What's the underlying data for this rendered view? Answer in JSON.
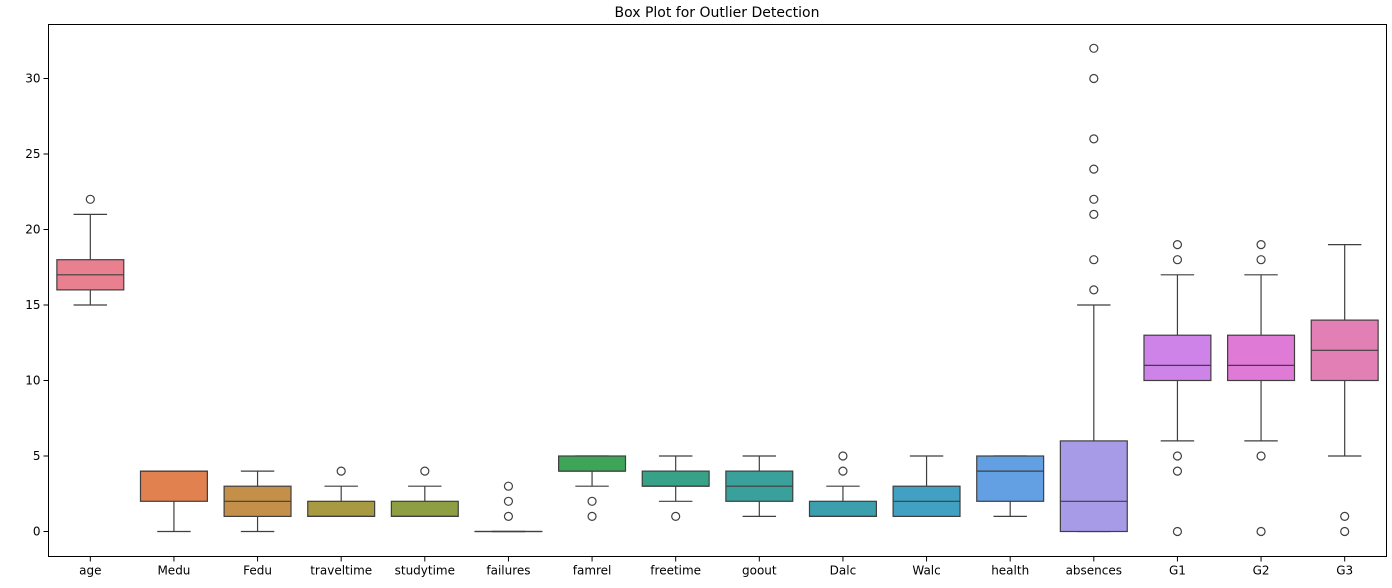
{
  "chart_data": {
    "type": "box",
    "title": "Box Plot for Outlier Detection",
    "xlabel": "",
    "ylabel": "",
    "ylim": [
      -1.5,
      33.8
    ],
    "yticks": [
      0,
      5,
      10,
      15,
      20,
      25,
      30
    ],
    "grid": false,
    "legend": "none",
    "categories": [
      "age",
      "Medu",
      "Fedu",
      "traveltime",
      "studytime",
      "failures",
      "famrel",
      "freetime",
      "goout",
      "Dalc",
      "Walc",
      "health",
      "absences",
      "G1",
      "G2",
      "G3"
    ],
    "boxes": [
      {
        "name": "age",
        "color": "#e8808f",
        "q1": 16,
        "median": 17,
        "q3": 18,
        "whislo": 15,
        "whishi": 21,
        "fliers": [
          22
        ]
      },
      {
        "name": "Medu",
        "color": "#e0814f",
        "q1": 2,
        "median": 4,
        "q3": 4,
        "whislo": 0,
        "whishi": 4,
        "fliers": []
      },
      {
        "name": "Fedu",
        "color": "#c49049",
        "q1": 1,
        "median": 2,
        "q3": 3,
        "whislo": 0,
        "whishi": 4,
        "fliers": []
      },
      {
        "name": "traveltime",
        "color": "#a79a42",
        "q1": 1,
        "median": 1,
        "q3": 2,
        "whislo": 1,
        "whishi": 3,
        "fliers": [
          4
        ]
      },
      {
        "name": "studytime",
        "color": "#8e9e42",
        "q1": 1,
        "median": 1,
        "q3": 2,
        "whislo": 1,
        "whishi": 3,
        "fliers": [
          4
        ]
      },
      {
        "name": "failures",
        "color": "#6aa443",
        "q1": 0,
        "median": 0,
        "q3": 0,
        "whislo": 0,
        "whishi": 0,
        "fliers": [
          1,
          2,
          3
        ]
      },
      {
        "name": "famrel",
        "color": "#3da458",
        "q1": 4,
        "median": 4,
        "q3": 5,
        "whislo": 3,
        "whishi": 5,
        "fliers": [
          1,
          2
        ]
      },
      {
        "name": "freetime",
        "color": "#38a288",
        "q1": 3,
        "median": 3,
        "q3": 4,
        "whislo": 2,
        "whishi": 5,
        "fliers": [
          1
        ]
      },
      {
        "name": "goout",
        "color": "#3aa09b",
        "q1": 2,
        "median": 3,
        "q3": 4,
        "whislo": 1,
        "whishi": 5,
        "fliers": []
      },
      {
        "name": "Dalc",
        "color": "#3c9fae",
        "q1": 1,
        "median": 1,
        "q3": 2,
        "whislo": 1,
        "whishi": 3,
        "fliers": [
          4,
          5
        ]
      },
      {
        "name": "Walc",
        "color": "#42a0c2",
        "q1": 1,
        "median": 2,
        "q3": 3,
        "whislo": 1,
        "whishi": 5,
        "fliers": []
      },
      {
        "name": "health",
        "color": "#62a0e3",
        "q1": 2,
        "median": 4,
        "q3": 5,
        "whislo": 1,
        "whishi": 5,
        "fliers": []
      },
      {
        "name": "absences",
        "color": "#a79be8",
        "q1": 0,
        "median": 2,
        "q3": 6,
        "whislo": 0,
        "whishi": 15,
        "fliers": [
          16,
          18,
          21,
          22,
          24,
          26,
          30,
          32
        ]
      },
      {
        "name": "G1",
        "color": "#cd83e8",
        "q1": 10,
        "median": 11,
        "q3": 13,
        "whislo": 6,
        "whishi": 17,
        "fliers": [
          0,
          4,
          5,
          18,
          19
        ]
      },
      {
        "name": "G2",
        "color": "#e07ad7",
        "q1": 10,
        "median": 11,
        "q3": 13,
        "whislo": 6,
        "whishi": 17,
        "fliers": [
          0,
          5,
          18,
          19
        ]
      },
      {
        "name": "G3",
        "color": "#e27fb5",
        "q1": 10,
        "median": 12,
        "q3": 14,
        "whislo": 5,
        "whishi": 19,
        "fliers": [
          0,
          1
        ]
      }
    ]
  }
}
